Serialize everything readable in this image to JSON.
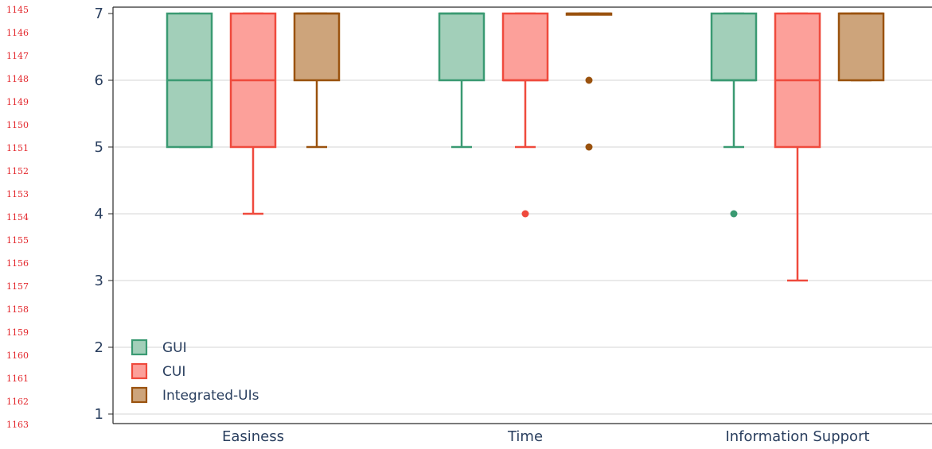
{
  "line_numbers": [
    "1145",
    "1146",
    "1147",
    "1148",
    "1149",
    "1150",
    "1151",
    "1152",
    "1153",
    "1154",
    "1155",
    "1156",
    "1157",
    "1158",
    "1159",
    "1160",
    "1161",
    "1162",
    "1163"
  ],
  "chart_data": {
    "type": "box",
    "categories": [
      "Easiness",
      "Time",
      "Information Support"
    ],
    "ylim": [
      0.8,
      7.1
    ],
    "yticks": [
      1,
      2,
      3,
      4,
      5,
      6,
      7
    ],
    "grid": true,
    "legend_position": "bottom-left",
    "series": [
      {
        "name": "GUI",
        "color": "#3a9a72",
        "fill": "#a2cfb9",
        "boxes": [
          {
            "min": 5,
            "q1": 5,
            "median": 6,
            "q3": 7,
            "max": 7,
            "outliers": []
          },
          {
            "min": 5,
            "q1": 6,
            "median": 7,
            "q3": 7,
            "max": 7,
            "outliers": []
          },
          {
            "min": 5,
            "q1": 6,
            "median": 6,
            "q3": 7,
            "max": 7,
            "outliers": [
              4
            ]
          }
        ]
      },
      {
        "name": "CUI",
        "color": "#ef4a3d",
        "fill": "#fca09a",
        "boxes": [
          {
            "min": 4,
            "q1": 5,
            "median": 6,
            "q3": 7,
            "max": 7,
            "outliers": []
          },
          {
            "min": 5,
            "q1": 6,
            "median": 6,
            "q3": 7,
            "max": 7,
            "outliers": [
              4
            ]
          },
          {
            "min": 3,
            "q1": 5,
            "median": 6,
            "q3": 7,
            "max": 7,
            "outliers": []
          }
        ]
      },
      {
        "name": "Integrated-UIs",
        "color": "#9a520e",
        "fill": "#cda47b",
        "boxes": [
          {
            "min": 5,
            "q1": 6,
            "median": 7,
            "q3": 7,
            "max": 7,
            "outliers": []
          },
          {
            "min": 7,
            "q1": 7,
            "median": 7,
            "q3": 7,
            "max": 7,
            "outliers": [
              6,
              5
            ]
          },
          {
            "min": 6,
            "q1": 6,
            "median": 7,
            "q3": 7,
            "max": 7,
            "outliers": []
          }
        ]
      }
    ]
  }
}
